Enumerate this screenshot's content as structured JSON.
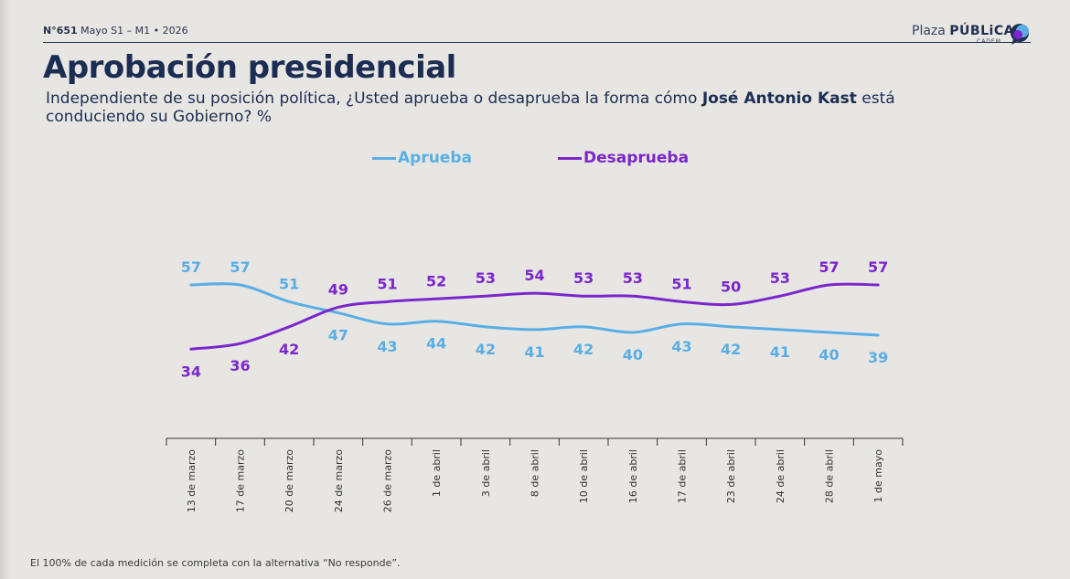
{
  "header": {
    "issue_number": "N°651",
    "issue_period": "Mayo S1 – M1 • 2026",
    "brand_prefix": "Plaza",
    "brand_main": "PÚBLiCA",
    "brand_sub": "CADEM"
  },
  "title": "Aprobación presidencial",
  "question": {
    "before": "Independiente de su posición política, ¿Usted aprueba o desaprueba la forma cómo ",
    "name": "José Antonio Kast",
    "after": " está conduciendo su Gobierno? %"
  },
  "footnote": "El 100% de cada medición se completa con la alternativa “No responde”.",
  "colors": {
    "aprueba": "#5aaee6",
    "desaprueba": "#7a26cc",
    "title": "#1b2d52"
  },
  "chart_data": {
    "type": "line",
    "title": "",
    "xlabel": "",
    "ylabel": "",
    "legend_position": "top-center",
    "grid": false,
    "ylim": [
      30,
      60
    ],
    "x": [
      "13 de marzo",
      "17 de marzo",
      "20 de marzo",
      "24 de marzo",
      "26 de marzo",
      "1 de abril",
      "3 de abril",
      "8 de abril",
      "10 de abril",
      "16 de abril",
      "17 de abril",
      "23 de abril",
      "24 de abril",
      "28 de abril",
      "1 de mayo"
    ],
    "series": [
      {
        "name": "Aprueba",
        "values": [
          57,
          57,
          51,
          47,
          43,
          44,
          42,
          41,
          42,
          40,
          43,
          42,
          41,
          40,
          39
        ]
      },
      {
        "name": "Desaprueba",
        "values": [
          34,
          36,
          42,
          49,
          51,
          52,
          53,
          54,
          53,
          53,
          51,
          50,
          53,
          57,
          57
        ]
      }
    ]
  }
}
